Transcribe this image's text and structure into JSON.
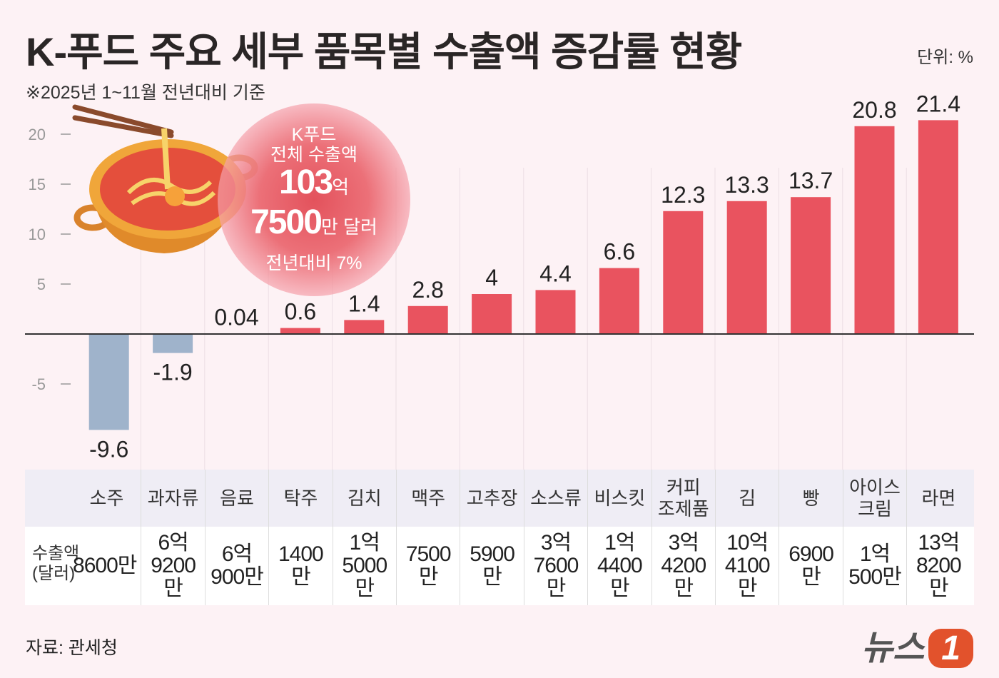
{
  "title": "K-푸드 주요 세부 품목별 수출액 증감률 현황",
  "unit": "단위: %",
  "subtitle": "※2025년 1~11월 전년대비 기준",
  "callout": {
    "line1": "K푸드",
    "line2": "전체 수출액",
    "amount1": "103",
    "amount1_unit": "억",
    "amount2": "7500",
    "amount2_unit": "만 달러",
    "change": "전년대비 7%"
  },
  "table": {
    "row_label": "수출액\n(달러)",
    "categories": [
      "소주",
      "과자류",
      "음료",
      "탁주",
      "김치",
      "맥주",
      "고추장",
      "소스류",
      "비스킷",
      "커피\n조제품",
      "김",
      "빵",
      "아이스\n크림",
      "라면"
    ],
    "export_values": [
      "8600만",
      "6억\n9200만",
      "6억\n900만",
      "1400만",
      "1억\n5000만",
      "7500만",
      "5900만",
      "3억\n7600만",
      "1억\n4400만",
      "3억\n4200만",
      "10억\n4100만",
      "6900만",
      "1억\n500만",
      "13억\n8200만"
    ]
  },
  "source": "자료: 관세청",
  "logo": {
    "text": "뉴스",
    "mark": "1"
  },
  "colors": {
    "positive": "#e9535f",
    "negative": "#9fb3cb",
    "background": "#fdf2f5"
  },
  "chart_data": {
    "type": "bar",
    "categories": [
      "소주",
      "과자류",
      "음료",
      "탁주",
      "김치",
      "맥주",
      "고추장",
      "소스류",
      "비스킷",
      "커피 조제품",
      "김",
      "빵",
      "아이스크림",
      "라면"
    ],
    "values": [
      -9.6,
      -1.9,
      0.04,
      0.6,
      1.4,
      2.8,
      4,
      4.4,
      6.6,
      12.3,
      13.3,
      13.7,
      20.8,
      21.4
    ],
    "value_labels": [
      "-9.6",
      "-1.9",
      "0.04",
      "0.6",
      "1.4",
      "2.8",
      "4",
      "4.4",
      "6.6",
      "12.3",
      "13.3",
      "13.7",
      "20.8",
      "21.4"
    ],
    "yticks": [
      20,
      15,
      10,
      5,
      -5
    ],
    "ylim": [
      -10,
      22
    ],
    "ylabel": "",
    "xlabel": "",
    "grid": false
  }
}
